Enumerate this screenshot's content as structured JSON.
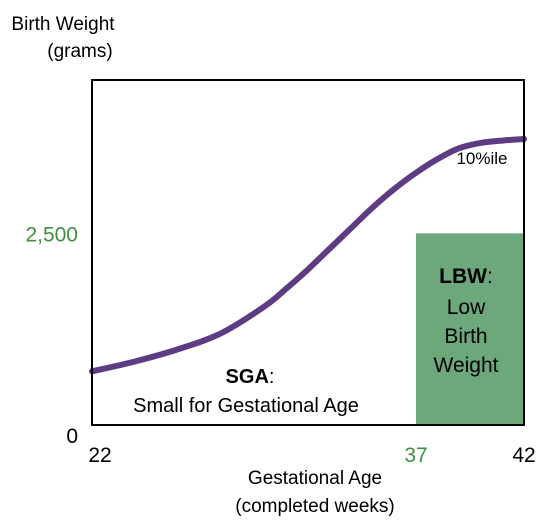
{
  "chart_data": {
    "type": "line",
    "ylabel": [
      "Birth Weight",
      "(grams)"
    ],
    "xlabel": [
      "Gestational Age",
      "(completed weeks)"
    ],
    "x_ticks": [
      "22",
      "37",
      "42"
    ],
    "y_ticks": [
      "0",
      "2,500"
    ],
    "xlim": [
      22,
      42
    ],
    "ylim": [
      0,
      4500
    ],
    "series": [
      {
        "name": "10%ile",
        "x": [
          22,
          24,
          26,
          28,
          30,
          31,
          32,
          33,
          34,
          35,
          36,
          37,
          38,
          39,
          40,
          41,
          42
        ],
        "y": [
          700,
          830,
          990,
          1200,
          1550,
          1780,
          2030,
          2300,
          2570,
          2840,
          3080,
          3290,
          3470,
          3610,
          3680,
          3710,
          3730
        ]
      }
    ],
    "lbw_region": {
      "x_start": 37,
      "x_end": 42,
      "y_max": 2500
    },
    "annotations": {
      "sga_bold": "SGA",
      "sga_colon": ":",
      "sga_text": "Small for Gestational Age",
      "lbw_bold": "LBW",
      "lbw_colon": ":",
      "lbw_lines": [
        "Low",
        "Birth",
        "Weight"
      ]
    },
    "colors": {
      "curve": "#5e3c84",
      "lbw_fill": "#6da77c",
      "green_text": "#3e8f3e",
      "axis": "#000000"
    }
  }
}
